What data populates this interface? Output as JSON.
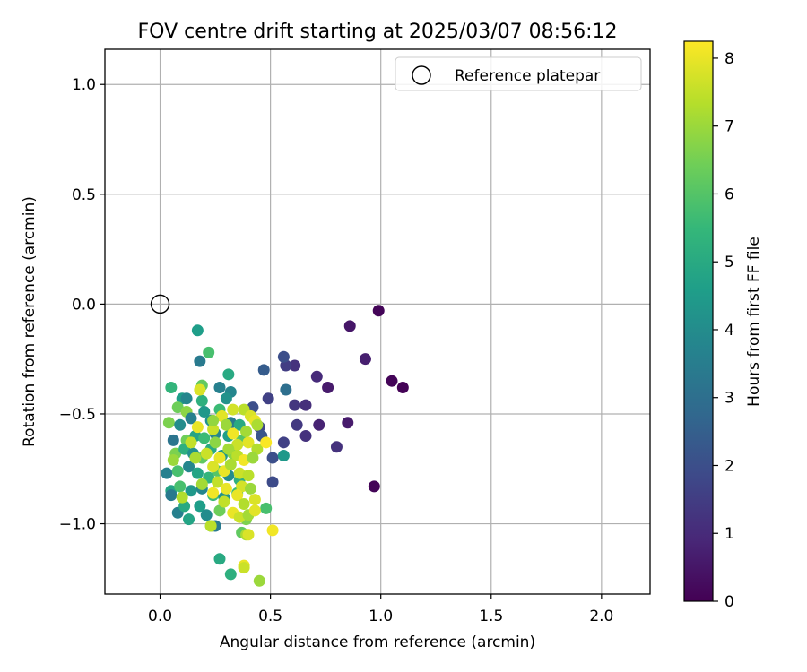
{
  "chart_data": {
    "type": "scatter",
    "title": "FOV centre drift starting at 2025/03/07 08:56:12",
    "xlabel": "Angular distance from reference (arcmin)",
    "ylabel": "Rotation from reference (arcmin)",
    "xlim": [
      -0.25,
      2.22
    ],
    "ylim": [
      -1.32,
      1.16
    ],
    "xticks": [
      0.0,
      0.5,
      1.0,
      1.5,
      2.0
    ],
    "xtick_labels": [
      "0.0",
      "0.5",
      "1.0",
      "1.5",
      "2.0"
    ],
    "yticks": [
      1.0,
      0.5,
      0.0,
      -0.5,
      -1.0
    ],
    "ytick_labels": [
      "1.0",
      "0.5",
      "0.0",
      "−0.5",
      "−1.0"
    ],
    "grid": true,
    "legend": {
      "placement": "top-right",
      "entries": [
        "Reference platepar"
      ]
    },
    "reference_point": {
      "x": 0.0,
      "y": 0.0
    },
    "colorbar": {
      "label": "Hours from first FF file",
      "range": [
        0,
        8.25
      ],
      "ticks": [
        0,
        1,
        2,
        3,
        4,
        5,
        6,
        7,
        8
      ],
      "tick_labels": [
        "0",
        "1",
        "2",
        "3",
        "4",
        "5",
        "6",
        "7",
        "8"
      ],
      "colormap": "viridis"
    },
    "colormap_stops": [
      "#440154",
      "#482878",
      "#3e4989",
      "#31688e",
      "#26828e",
      "#1f9e89",
      "#35b779",
      "#6ece58",
      "#b5de2b",
      "#fde725"
    ],
    "points": [
      [
        0.99,
        -0.03,
        0.1
      ],
      [
        0.86,
        -0.1,
        0.5
      ],
      [
        1.05,
        -0.35,
        0.1
      ],
      [
        1.1,
        -0.38,
        0.05
      ],
      [
        0.93,
        -0.25,
        0.7
      ],
      [
        0.97,
        -0.83,
        0.1
      ],
      [
        0.71,
        -0.33,
        1.0
      ],
      [
        0.76,
        -0.38,
        0.6
      ],
      [
        0.61,
        -0.28,
        1.2
      ],
      [
        0.57,
        -0.28,
        1.5
      ],
      [
        0.56,
        -0.24,
        2.0
      ],
      [
        0.47,
        -0.3,
        2.4
      ],
      [
        0.49,
        -0.43,
        1.6
      ],
      [
        0.61,
        -0.46,
        1.3
      ],
      [
        0.66,
        -0.46,
        1.1
      ],
      [
        0.62,
        -0.55,
        1.4
      ],
      [
        0.72,
        -0.55,
        0.8
      ],
      [
        0.66,
        -0.6,
        1.2
      ],
      [
        0.85,
        -0.54,
        0.6
      ],
      [
        0.8,
        -0.65,
        1.2
      ],
      [
        0.56,
        -0.63,
        1.6
      ],
      [
        0.51,
        -0.7,
        2.0
      ],
      [
        0.51,
        -0.81,
        1.9
      ],
      [
        0.57,
        -0.39,
        3.0
      ],
      [
        0.42,
        -0.47,
        2.0
      ],
      [
        0.45,
        -0.56,
        1.8
      ],
      [
        0.46,
        -0.6,
        2.2
      ],
      [
        0.56,
        -0.69,
        4.4
      ],
      [
        0.48,
        -0.93,
        5.8
      ],
      [
        0.17,
        -0.12,
        4.6
      ],
      [
        0.22,
        -0.22,
        5.8
      ],
      [
        0.18,
        -0.26,
        3.4
      ],
      [
        0.31,
        -0.32,
        5.0
      ],
      [
        0.32,
        -0.4,
        3.8
      ],
      [
        0.27,
        -0.38,
        3.6
      ],
      [
        0.3,
        -0.43,
        4.2
      ],
      [
        0.19,
        -0.37,
        6.2
      ],
      [
        0.05,
        -0.38,
        5.4
      ],
      [
        0.1,
        -0.43,
        4.6
      ],
      [
        0.12,
        -0.43,
        3.8
      ],
      [
        0.19,
        -0.44,
        5.2
      ],
      [
        0.08,
        -0.47,
        6.4
      ],
      [
        0.12,
        -0.49,
        6.8
      ],
      [
        0.2,
        -0.49,
        4.4
      ],
      [
        0.27,
        -0.48,
        5.6
      ],
      [
        0.04,
        -0.54,
        6.6
      ],
      [
        0.09,
        -0.55,
        4.0
      ],
      [
        0.14,
        -0.52,
        3.6
      ],
      [
        0.23,
        -0.53,
        4.2
      ],
      [
        0.32,
        -0.54,
        3.4
      ],
      [
        0.36,
        -0.55,
        5.0
      ],
      [
        0.06,
        -0.62,
        3.2
      ],
      [
        0.12,
        -0.62,
        6.4
      ],
      [
        0.16,
        -0.6,
        4.8
      ],
      [
        0.2,
        -0.61,
        5.6
      ],
      [
        0.25,
        -0.59,
        3.8
      ],
      [
        0.31,
        -0.6,
        4.6
      ],
      [
        0.37,
        -0.62,
        6.0
      ],
      [
        0.07,
        -0.68,
        6.6
      ],
      [
        0.11,
        -0.66,
        5.2
      ],
      [
        0.15,
        -0.68,
        4.2
      ],
      [
        0.19,
        -0.7,
        6.2
      ],
      [
        0.23,
        -0.66,
        5.0
      ],
      [
        0.28,
        -0.69,
        4.4
      ],
      [
        0.33,
        -0.68,
        6.8
      ],
      [
        0.03,
        -0.77,
        3.6
      ],
      [
        0.08,
        -0.76,
        5.8
      ],
      [
        0.13,
        -0.74,
        3.8
      ],
      [
        0.17,
        -0.77,
        4.8
      ],
      [
        0.22,
        -0.79,
        5.4
      ],
      [
        0.26,
        -0.76,
        6.0
      ],
      [
        0.31,
        -0.78,
        4.0
      ],
      [
        0.36,
        -0.8,
        5.2
      ],
      [
        0.05,
        -0.85,
        4.8
      ],
      [
        0.05,
        -0.87,
        3.4
      ],
      [
        0.09,
        -0.83,
        5.8
      ],
      [
        0.14,
        -0.85,
        4.4
      ],
      [
        0.19,
        -0.84,
        3.8
      ],
      [
        0.24,
        -0.87,
        5.6
      ],
      [
        0.29,
        -0.88,
        4.2
      ],
      [
        0.35,
        -0.86,
        5.6
      ],
      [
        0.08,
        -0.95,
        3.6
      ],
      [
        0.11,
        -0.92,
        5.0
      ],
      [
        0.18,
        -0.92,
        4.6
      ],
      [
        0.21,
        -0.96,
        4.0
      ],
      [
        0.27,
        -0.94,
        6.4
      ],
      [
        0.13,
        -0.98,
        4.8
      ],
      [
        0.23,
        -1.01,
        5.8
      ],
      [
        0.25,
        -1.01,
        3.4
      ],
      [
        0.27,
        -1.16,
        5.0
      ],
      [
        0.32,
        -1.23,
        5.2
      ],
      [
        0.37,
        -1.04,
        6.2
      ],
      [
        0.39,
        -0.98,
        6.6
      ],
      [
        0.18,
        -0.39,
        7.8
      ],
      [
        0.17,
        -0.56,
        8.0
      ],
      [
        0.24,
        -0.57,
        7.6
      ],
      [
        0.28,
        -0.51,
        7.9
      ],
      [
        0.3,
        -0.55,
        7.0
      ],
      [
        0.33,
        -0.59,
        8.1
      ],
      [
        0.38,
        -0.48,
        7.4
      ],
      [
        0.41,
        -0.51,
        7.8
      ],
      [
        0.43,
        -0.53,
        8.0
      ],
      [
        0.44,
        -0.55,
        7.2
      ],
      [
        0.35,
        -0.64,
        7.6
      ],
      [
        0.39,
        -0.58,
        7.1
      ],
      [
        0.4,
        -0.63,
        7.9
      ],
      [
        0.44,
        -0.66,
        7.3
      ],
      [
        0.48,
        -0.63,
        8.2
      ],
      [
        0.25,
        -0.63,
        6.8
      ],
      [
        0.21,
        -0.68,
        7.6
      ],
      [
        0.27,
        -0.7,
        8.0
      ],
      [
        0.31,
        -0.66,
        7.1
      ],
      [
        0.35,
        -0.69,
        7.4
      ],
      [
        0.38,
        -0.71,
        8.1
      ],
      [
        0.42,
        -0.7,
        7.0
      ],
      [
        0.24,
        -0.74,
        7.8
      ],
      [
        0.29,
        -0.76,
        8.0
      ],
      [
        0.32,
        -0.73,
        7.2
      ],
      [
        0.36,
        -0.77,
        7.6
      ],
      [
        0.4,
        -0.78,
        7.4
      ],
      [
        0.19,
        -0.82,
        7.1
      ],
      [
        0.26,
        -0.81,
        7.5
      ],
      [
        0.3,
        -0.84,
        8.0
      ],
      [
        0.37,
        -0.83,
        7.7
      ],
      [
        0.41,
        -0.84,
        7.0
      ],
      [
        0.24,
        -0.86,
        8.1
      ],
      [
        0.29,
        -0.9,
        7.5
      ],
      [
        0.35,
        -0.87,
        8.0
      ],
      [
        0.38,
        -0.91,
        7.3
      ],
      [
        0.43,
        -0.89,
        7.8
      ],
      [
        0.33,
        -0.95,
        8.0
      ],
      [
        0.36,
        -0.97,
        7.6
      ],
      [
        0.4,
        -0.96,
        7.1
      ],
      [
        0.43,
        -0.94,
        7.9
      ],
      [
        0.23,
        -1.01,
        7.4
      ],
      [
        0.39,
        -1.05,
        7.2
      ],
      [
        0.4,
        -1.05,
        7.8
      ],
      [
        0.38,
        -1.19,
        8.0
      ],
      [
        0.38,
        -1.2,
        7.6
      ],
      [
        0.51,
        -1.03,
        8.1
      ],
      [
        0.45,
        -1.26,
        7.0
      ],
      [
        0.1,
        -0.88,
        7.3
      ],
      [
        0.16,
        -0.7,
        7.2
      ],
      [
        0.14,
        -0.63,
        7.5
      ],
      [
        0.06,
        -0.71,
        7.0
      ],
      [
        0.24,
        -0.53,
        6.9
      ],
      [
        0.33,
        -0.48,
        7.7
      ]
    ]
  }
}
